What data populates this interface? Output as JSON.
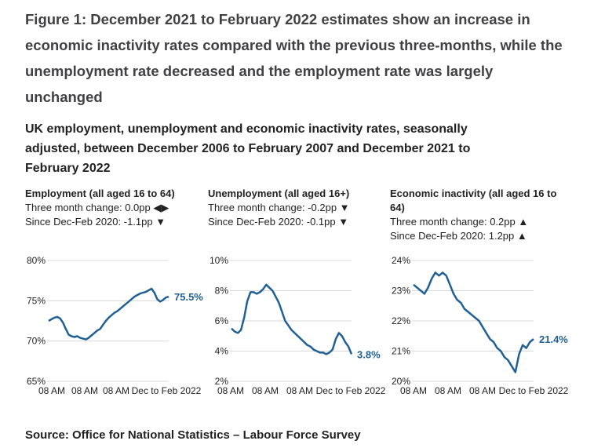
{
  "figure_title": "Figure 1: December 2021 to February 2022 estimates show an increase in economic inactivity rates compared with the previous three-months, while the unemployment rate decreased and the employment rate was largely unchanged",
  "subtitle": "UK employment, unemployment and economic inactivity rates, seasonally adjusted, between December 2006 to February 2007 and December 2021 to February 2022",
  "source": "Source: Office for National Statistics – Labour Force Survey",
  "colors": {
    "line": "#206095",
    "grid": "#d9d9d9",
    "text": "#222222"
  },
  "chart_data": [
    {
      "type": "line",
      "title": "Employment (all aged 16 to 64)",
      "change_three_month": "Three month change: 0.0pp ◀▶",
      "change_since": "Since Dec-Feb 2020: -1.1pp ▼",
      "x_ticks": [
        "08 AM",
        "08 AM",
        "08 AM",
        "Dec to Feb 2022"
      ],
      "y_ticks": [
        "65%",
        "70%",
        "75%",
        "80%"
      ],
      "ylim": [
        65,
        80
      ],
      "end_label": "75.5%",
      "series": [
        {
          "name": "Employment rate",
          "values": [
            72.5,
            72.7,
            72.9,
            73.0,
            72.8,
            72.3,
            71.5,
            70.8,
            70.6,
            70.5,
            70.6,
            70.4,
            70.3,
            70.2,
            70.4,
            70.7,
            71.0,
            71.3,
            71.5,
            72.0,
            72.5,
            72.9,
            73.2,
            73.5,
            73.7,
            74.0,
            74.3,
            74.6,
            74.9,
            75.2,
            75.5,
            75.7,
            75.9,
            76.0,
            76.1,
            76.3,
            76.5,
            76.0,
            75.2,
            74.9,
            75.1,
            75.4,
            75.5
          ]
        }
      ]
    },
    {
      "type": "line",
      "title": "Unemployment (all aged 16+)",
      "change_three_month": "Three month change: -0.2pp ▼",
      "change_since": "Since Dec-Feb 2020: -0.1pp ▼",
      "x_ticks": [
        "08 AM",
        "08 AM",
        "08 AM",
        "Dec to Feb 2022"
      ],
      "y_ticks": [
        "2%",
        "4%",
        "6%",
        "8%",
        "10%"
      ],
      "ylim": [
        2,
        10
      ],
      "end_label": "3.8%",
      "series": [
        {
          "name": "Unemployment rate",
          "values": [
            5.5,
            5.3,
            5.2,
            5.4,
            6.2,
            7.3,
            7.9,
            7.9,
            7.8,
            7.9,
            8.1,
            8.4,
            8.2,
            8.0,
            7.6,
            7.2,
            6.6,
            6.0,
            5.7,
            5.4,
            5.2,
            5.0,
            4.8,
            4.6,
            4.4,
            4.3,
            4.1,
            4.0,
            3.9,
            3.9,
            3.8,
            3.9,
            4.1,
            4.8,
            5.2,
            5.0,
            4.6,
            4.3,
            3.8
          ]
        }
      ]
    },
    {
      "type": "line",
      "title": "Economic inactivity (all aged 16 to 64)",
      "change_three_month": "Three month change: 0.2pp ▲",
      "change_since": "Since Dec-Feb 2020: 1.2pp ▲",
      "x_ticks": [
        "08 AM",
        "08 AM",
        "08 AM",
        "Dec to Feb 2022"
      ],
      "y_ticks": [
        "20%",
        "21%",
        "22%",
        "23%",
        "24%"
      ],
      "ylim": [
        20,
        24
      ],
      "end_label": "21.4%",
      "series": [
        {
          "name": "Economic inactivity rate",
          "values": [
            23.2,
            23.1,
            23.0,
            22.9,
            23.1,
            23.4,
            23.6,
            23.5,
            23.6,
            23.5,
            23.2,
            22.9,
            22.7,
            22.6,
            22.4,
            22.3,
            22.2,
            22.1,
            22.0,
            21.8,
            21.6,
            21.4,
            21.3,
            21.1,
            21.0,
            20.8,
            20.7,
            20.5,
            20.3,
            20.9,
            21.2,
            21.1,
            21.3,
            21.4
          ]
        }
      ]
    }
  ]
}
